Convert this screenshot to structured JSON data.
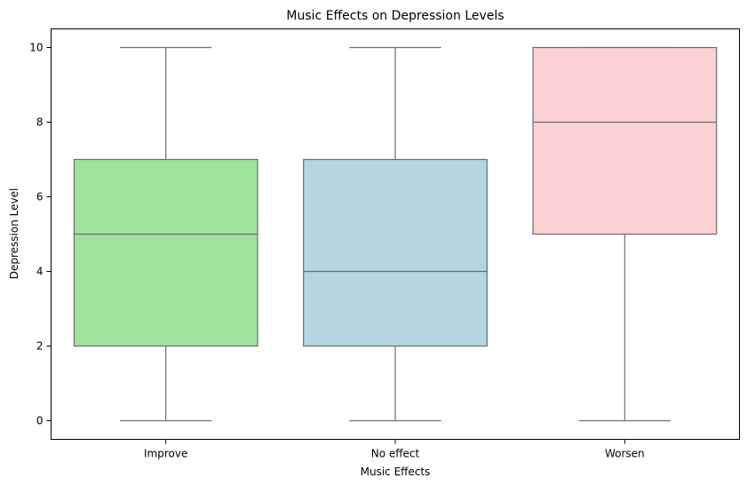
{
  "chart_data": {
    "type": "box",
    "title": "Music Effects on Depression Levels",
    "xlabel": "Music Effects",
    "ylabel": "Depression Level",
    "ylim": [
      -0.5,
      10.5
    ],
    "yticks": [
      0,
      2,
      4,
      6,
      8,
      10
    ],
    "grid": false,
    "categories": [
      "Improve",
      "No effect",
      "Worsen"
    ],
    "boxes": [
      {
        "category": "Improve",
        "min": 0,
        "q1": 2,
        "median": 5,
        "q3": 7,
        "max": 10,
        "color": "#9de29d"
      },
      {
        "category": "No effect",
        "min": 0,
        "q1": 2,
        "median": 4,
        "q3": 7,
        "max": 10,
        "color": "#b4d6e0"
      },
      {
        "category": "Worsen",
        "min": 0,
        "q1": 5,
        "median": 8,
        "q3": 10,
        "max": 10,
        "color": "#fad2d3"
      }
    ]
  }
}
